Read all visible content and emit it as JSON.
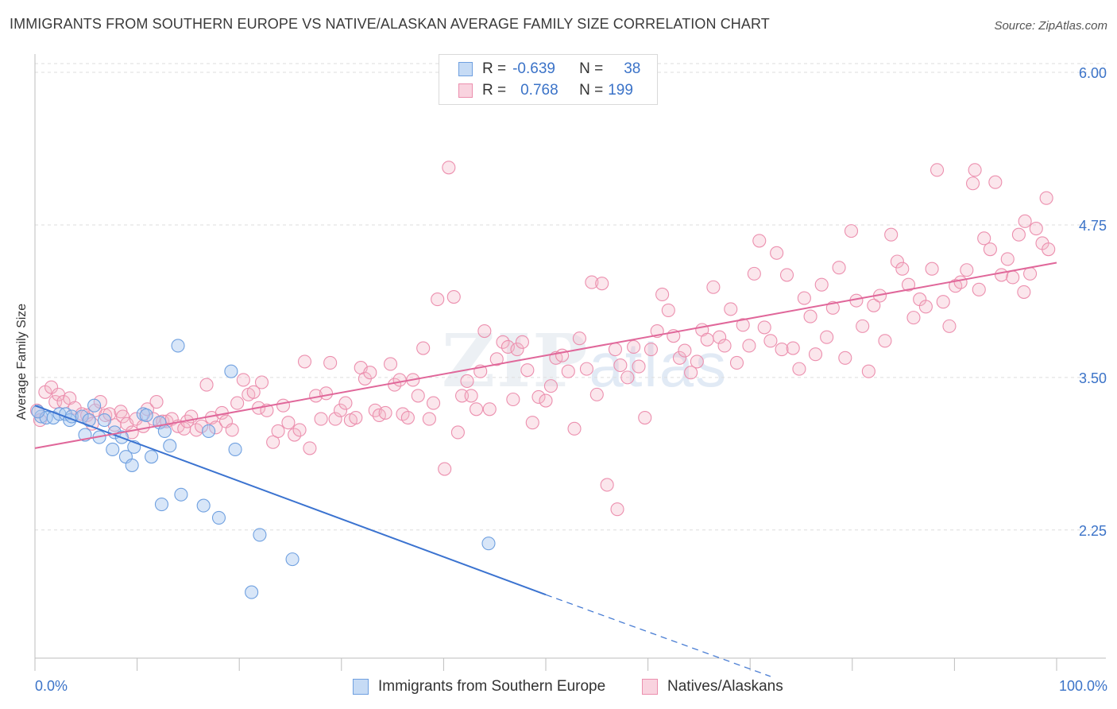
{
  "title": "IMMIGRANTS FROM SOUTHERN EUROPE VS NATIVE/ALASKAN AVERAGE FAMILY SIZE CORRELATION CHART",
  "source": "Source: ZipAtlas.com",
  "watermark": {
    "main": "ZIP",
    "sub": "atlas"
  },
  "legend": {
    "rows": [
      {
        "r_label": "R =",
        "r_value": "-0.639",
        "n_label": "N =",
        "n_value": "38",
        "color": "#a8c8f0"
      },
      {
        "r_label": "R =",
        "r_value": "0.768",
        "n_label": "N =",
        "n_value": "199",
        "color": "#f4b6c8"
      }
    ]
  },
  "bottom_legend": [
    {
      "label": "Immigrants from Southern Europe",
      "color": "#a8c8f0"
    },
    {
      "label": "Natives/Alaskans",
      "color": "#f4b6c8"
    }
  ],
  "chart_data": {
    "type": "scatter",
    "title": "IMMIGRANTS FROM SOUTHERN EUROPE VS NATIVE/ALASKAN AVERAGE FAMILY SIZE CORRELATION CHART",
    "xlabel": "",
    "ylabel": "Average Family Size",
    "xlim": [
      0,
      100
    ],
    "ylim": [
      1.2,
      6.15
    ],
    "x_tick_labels": [
      "0.0%",
      "100.0%"
    ],
    "y_ticks": [
      2.25,
      3.5,
      4.75,
      6.0
    ],
    "y_tick_labels": [
      "2.25",
      "3.50",
      "4.75",
      "6.00"
    ],
    "grid": "horizontal dashed",
    "series": [
      {
        "name": "Immigrants from Southern Europe",
        "color": "#6fa0e0",
        "fill": "rgba(168,200,240,0.45)",
        "r": -0.639,
        "n": 38,
        "trend": {
          "x0": 0,
          "y0": 3.27,
          "x1": 50,
          "y1": 1.72,
          "dash_to_x": 72,
          "dash_to_y": 1.05
        },
        "points": [
          [
            0.6,
            3.18
          ],
          [
            1.1,
            3.17
          ],
          [
            1.8,
            3.17
          ],
          [
            2.4,
            3.2
          ],
          [
            3.0,
            3.2
          ],
          [
            3.4,
            3.15
          ],
          [
            3.6,
            3.18
          ],
          [
            4.6,
            3.18
          ],
          [
            5.3,
            3.15
          ],
          [
            5.8,
            3.27
          ],
          [
            4.9,
            3.03
          ],
          [
            6.3,
            3.01
          ],
          [
            6.8,
            3.15
          ],
          [
            7.6,
            2.91
          ],
          [
            7.8,
            3.05
          ],
          [
            8.5,
            3.01
          ],
          [
            8.9,
            2.85
          ],
          [
            9.5,
            2.78
          ],
          [
            9.7,
            2.93
          ],
          [
            10.6,
            3.2
          ],
          [
            10.9,
            3.19
          ],
          [
            11.4,
            2.85
          ],
          [
            12.2,
            3.13
          ],
          [
            12.7,
            3.06
          ],
          [
            13.2,
            2.94
          ],
          [
            14.0,
            3.76
          ],
          [
            12.4,
            2.46
          ],
          [
            14.3,
            2.54
          ],
          [
            16.5,
            2.45
          ],
          [
            17.0,
            3.06
          ],
          [
            18.0,
            2.35
          ],
          [
            19.2,
            3.55
          ],
          [
            19.6,
            2.91
          ],
          [
            22.0,
            2.21
          ],
          [
            21.2,
            1.74
          ],
          [
            25.2,
            2.01
          ],
          [
            44.4,
            2.14
          ],
          [
            0.3,
            3.22
          ]
        ]
      },
      {
        "name": "Natives/Alaskans",
        "color": "#ec8fae",
        "fill": "rgba(244,182,200,0.35)",
        "r": 0.768,
        "n": 199,
        "trend": {
          "x0": 0,
          "y0": 2.92,
          "x1": 100,
          "y1": 4.44
        },
        "points": [
          [
            0.2,
            3.23
          ],
          [
            0.5,
            3.15
          ],
          [
            1.0,
            3.38
          ],
          [
            1.6,
            3.42
          ],
          [
            2.0,
            3.3
          ],
          [
            2.3,
            3.36
          ],
          [
            2.8,
            3.3
          ],
          [
            3.4,
            3.33
          ],
          [
            3.9,
            3.25
          ],
          [
            4.6,
            3.2
          ],
          [
            5.1,
            3.19
          ],
          [
            5.6,
            3.12
          ],
          [
            5.9,
            3.23
          ],
          [
            6.4,
            3.3
          ],
          [
            6.9,
            3.19
          ],
          [
            7.3,
            3.2
          ],
          [
            7.8,
            3.11
          ],
          [
            8.4,
            3.22
          ],
          [
            8.6,
            3.18
          ],
          [
            9.0,
            3.12
          ],
          [
            9.5,
            3.05
          ],
          [
            9.9,
            3.16
          ],
          [
            10.6,
            3.1
          ],
          [
            11.0,
            3.24
          ],
          [
            11.6,
            3.16
          ],
          [
            11.9,
            3.3
          ],
          [
            12.5,
            3.14
          ],
          [
            12.9,
            3.14
          ],
          [
            13.4,
            3.16
          ],
          [
            14.0,
            3.1
          ],
          [
            14.6,
            3.08
          ],
          [
            14.9,
            3.14
          ],
          [
            15.3,
            3.18
          ],
          [
            15.8,
            3.07
          ],
          [
            16.3,
            3.1
          ],
          [
            16.8,
            3.44
          ],
          [
            17.3,
            3.17
          ],
          [
            17.7,
            3.09
          ],
          [
            18.3,
            3.21
          ],
          [
            18.7,
            3.14
          ],
          [
            19.3,
            3.07
          ],
          [
            19.8,
            3.29
          ],
          [
            20.4,
            3.48
          ],
          [
            20.9,
            3.36
          ],
          [
            21.4,
            3.38
          ],
          [
            21.9,
            3.25
          ],
          [
            22.2,
            3.46
          ],
          [
            22.7,
            3.23
          ],
          [
            23.3,
            2.97
          ],
          [
            23.8,
            3.06
          ],
          [
            24.3,
            3.27
          ],
          [
            24.8,
            3.13
          ],
          [
            25.4,
            3.03
          ],
          [
            25.9,
            3.07
          ],
          [
            26.4,
            3.63
          ],
          [
            26.9,
            2.92
          ],
          [
            27.5,
            3.35
          ],
          [
            28.0,
            3.16
          ],
          [
            28.5,
            3.37
          ],
          [
            28.9,
            3.62
          ],
          [
            29.4,
            3.16
          ],
          [
            29.9,
            3.23
          ],
          [
            30.4,
            3.29
          ],
          [
            30.9,
            3.15
          ],
          [
            31.4,
            3.17
          ],
          [
            31.9,
            3.58
          ],
          [
            32.3,
            3.49
          ],
          [
            32.8,
            3.54
          ],
          [
            33.3,
            3.23
          ],
          [
            33.7,
            3.19
          ],
          [
            34.3,
            3.21
          ],
          [
            34.8,
            3.61
          ],
          [
            35.2,
            3.44
          ],
          [
            35.7,
            3.48
          ],
          [
            36.0,
            3.2
          ],
          [
            36.5,
            3.17
          ],
          [
            37.0,
            3.48
          ],
          [
            37.5,
            3.35
          ],
          [
            38.0,
            3.74
          ],
          [
            38.6,
            3.16
          ],
          [
            39.0,
            3.29
          ],
          [
            39.4,
            4.14
          ],
          [
            40.1,
            2.75
          ],
          [
            40.5,
            5.22
          ],
          [
            41.0,
            4.16
          ],
          [
            41.4,
            3.05
          ],
          [
            41.8,
            3.35
          ],
          [
            42.3,
            3.47
          ],
          [
            42.7,
            3.35
          ],
          [
            43.2,
            3.24
          ],
          [
            43.6,
            3.55
          ],
          [
            44.0,
            3.88
          ],
          [
            44.5,
            3.24
          ],
          [
            45.2,
            3.65
          ],
          [
            45.8,
            3.79
          ],
          [
            46.3,
            3.75
          ],
          [
            46.8,
            3.32
          ],
          [
            47.2,
            3.73
          ],
          [
            47.7,
            3.79
          ],
          [
            48.2,
            3.56
          ],
          [
            48.7,
            3.13
          ],
          [
            49.3,
            3.34
          ],
          [
            50.0,
            3.31
          ],
          [
            50.5,
            3.43
          ],
          [
            51.0,
            3.66
          ],
          [
            51.6,
            3.68
          ],
          [
            52.2,
            3.55
          ],
          [
            52.8,
            3.08
          ],
          [
            53.3,
            3.82
          ],
          [
            54.0,
            3.57
          ],
          [
            54.5,
            4.28
          ],
          [
            55.0,
            3.36
          ],
          [
            55.5,
            4.27
          ],
          [
            56.0,
            2.62
          ],
          [
            56.8,
            3.73
          ],
          [
            57.3,
            3.6
          ],
          [
            58.0,
            3.5
          ],
          [
            58.6,
            3.75
          ],
          [
            59.1,
            3.59
          ],
          [
            59.7,
            3.17
          ],
          [
            60.3,
            3.73
          ],
          [
            60.9,
            3.88
          ],
          [
            61.4,
            4.18
          ],
          [
            62.0,
            4.05
          ],
          [
            62.5,
            3.84
          ],
          [
            63.1,
            3.66
          ],
          [
            63.6,
            3.72
          ],
          [
            64.2,
            3.54
          ],
          [
            64.8,
            3.63
          ],
          [
            65.3,
            3.89
          ],
          [
            65.8,
            3.81
          ],
          [
            66.4,
            4.24
          ],
          [
            67.0,
            3.83
          ],
          [
            67.5,
            3.76
          ],
          [
            68.1,
            4.06
          ],
          [
            68.7,
            3.62
          ],
          [
            69.3,
            3.93
          ],
          [
            69.9,
            3.76
          ],
          [
            70.4,
            4.35
          ],
          [
            70.9,
            4.62
          ],
          [
            71.4,
            3.91
          ],
          [
            72.0,
            3.8
          ],
          [
            72.6,
            4.52
          ],
          [
            73.1,
            3.73
          ],
          [
            73.6,
            4.34
          ],
          [
            74.2,
            3.74
          ],
          [
            74.8,
            3.57
          ],
          [
            75.3,
            4.15
          ],
          [
            75.9,
            4.0
          ],
          [
            76.4,
            3.69
          ],
          [
            77.0,
            4.26
          ],
          [
            77.5,
            3.83
          ],
          [
            78.1,
            4.07
          ],
          [
            78.7,
            4.4
          ],
          [
            79.3,
            3.66
          ],
          [
            79.9,
            4.7
          ],
          [
            80.4,
            4.13
          ],
          [
            81.0,
            3.92
          ],
          [
            81.6,
            3.55
          ],
          [
            82.1,
            4.09
          ],
          [
            82.7,
            4.17
          ],
          [
            83.2,
            3.8
          ],
          [
            83.8,
            4.67
          ],
          [
            84.4,
            4.45
          ],
          [
            84.9,
            4.39
          ],
          [
            85.5,
            4.26
          ],
          [
            86.0,
            3.99
          ],
          [
            86.6,
            4.14
          ],
          [
            87.2,
            4.08
          ],
          [
            87.8,
            4.39
          ],
          [
            88.3,
            5.2
          ],
          [
            88.9,
            4.12
          ],
          [
            89.5,
            3.92
          ],
          [
            90.1,
            4.25
          ],
          [
            90.6,
            4.28
          ],
          [
            91.2,
            4.38
          ],
          [
            91.8,
            5.09
          ],
          [
            92.4,
            4.22
          ],
          [
            92.9,
            4.64
          ],
          [
            93.5,
            4.55
          ],
          [
            94.0,
            5.1
          ],
          [
            94.6,
            4.34
          ],
          [
            95.2,
            4.47
          ],
          [
            95.7,
            4.32
          ],
          [
            96.3,
            4.67
          ],
          [
            96.9,
            4.78
          ],
          [
            97.4,
            4.35
          ],
          [
            98.0,
            4.72
          ],
          [
            98.6,
            4.6
          ],
          [
            99.2,
            4.55
          ],
          [
            92.0,
            5.2
          ],
          [
            57.0,
            2.42
          ],
          [
            96.8,
            4.2
          ],
          [
            99.0,
            4.97
          ]
        ]
      }
    ]
  }
}
